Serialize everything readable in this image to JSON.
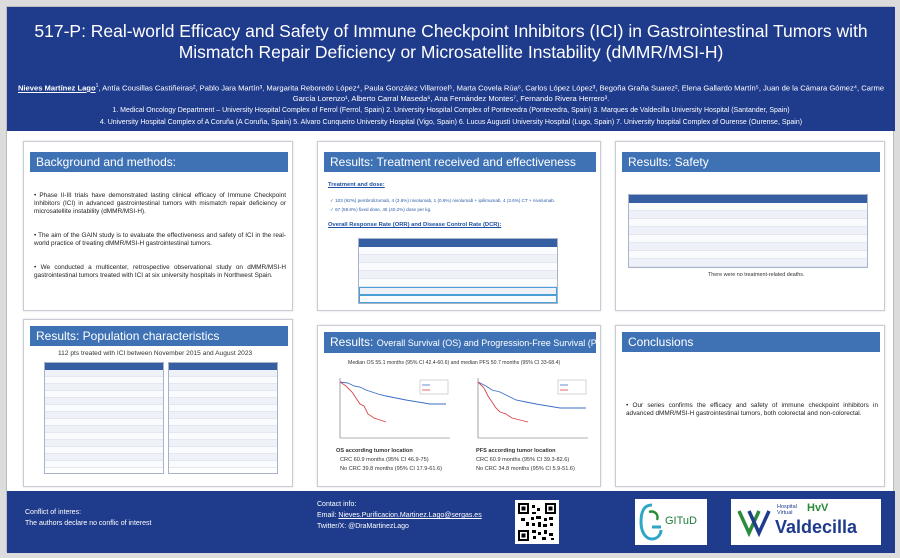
{
  "header": {
    "title_line1": "517-P: Real-world Efficacy and Safety of Immune Checkpoint Inhibitors (ICI) in Gastrointestinal Tumors with",
    "title_line2": "Mismatch Repair Deficiency or Microsatellite Instability (dMMR/MSI-H)",
    "presenter": "Nieves Martínez Lago",
    "presenter_sup": "1",
    "authors_rest": ", Antía Cousillas Castiñeiras², Pablo Jara Martín³, Margarita Reboredo López⁴, Paula González Villarroel⁵, Marta Covela Rúa⁶, Carlos López López³, Begoña Graña Suarez², Elena Gallardo Martín⁵, Juan de la Cámara Gómez⁴, Carme García Lorenzo¹, Alberto Carral Maseda⁶, Ana Fernández Montes⁷, Fernando Rivera Herrero³.",
    "affil_line1": "1. Medical Oncology Department – University Hospital Complex of Ferrol (Ferrol, Spain) 2. University Hospital Complex of Pontevedra (Pontevedra, Spain) 3. Marques de Valdecilla University Hospital (Santander, Spain)",
    "affil_line2": "4. University Hospital Complex of A Coruña (A Coruña, Spain) 5. Alvaro Cunqueiro University Hospital (Vigo, Spain) 6. Lucus Augusti University Hospital (Lugo, Spain) 7. University hospital Complex of  Ourense (Ourense, Spain)"
  },
  "background": {
    "title": "Background and methods:",
    "b1": "Phase II-III trials have demonstrated lasting clinical efficacy of Immune Checkpoint Inhibitors (ICI) in advanced gastrointestinal tumors with mismatch repair deficiency or microsatellite instability (dMMR/MSI-H).",
    "b2": "The aim of the GAIN study is to evaluate the effectiveness and safety of ICI in the real-world practice of treating dMMR/MSI-H gastrointestinal tumors.",
    "b3": "We conducted a multicenter, retrospective observational study on dMMR/MSI-H gastrointestinal tumors treated with ICI at six university hospitals in Northwest Spain."
  },
  "population": {
    "title": "Results: Population characteristics",
    "subtitle": "112 pts treated with ICI between November 2015 and August 2023"
  },
  "treatment": {
    "title": "Results: Treatment received and effectiveness",
    "dose_heading": "Treatment and dose:",
    "dose_line1": "✓ 103 (92%) pembrolizumab, 4 (3.6%) nivolumab, 1 (0.9%) nivolumab + ipilimumab, 4 (3.6%) CT + nivolumab.",
    "dose_line2": "✓ 67 (59.8%) fixed dose, 45 (40.2%) dose per kg.",
    "orr_heading": "Overall Response Rate (ORR) and Disease Control Rate (DCR):"
  },
  "safety": {
    "title": "Results: Safety",
    "note": "There were no treatment-related deaths."
  },
  "survival": {
    "title": "Results:",
    "title_small": "Overall Survival (OS) and Progression-Free Survival (PFS)",
    "median_line": "Median OS 55.1 months (95% CI 42.4-60.6) and median PFS 50.7 months (95% CI 33-68.4)",
    "os_label": "OS according tumor location",
    "os_crc": "CRC 60.9 months (95% CI 46.9-75)",
    "os_nocrc": "No CRC 39.8 months (95% CI 17.9-61.6)",
    "pfs_label": "PFS according tumor location",
    "pfs_crc": "CRC 60.9 months (95% CI 39.3-82.6)",
    "pfs_nocrc": "No CRC 34.8 months (95% CI 5.9-51.6)"
  },
  "conclusions": {
    "title": "Conclusions",
    "b1": "Our series confirms the efficacy and safety of immune checkpoint inhibitors in advanced dMMR/MSI-H gastrointestinal tumors, both colorectal and non-colorectal."
  },
  "footer": {
    "conflict_title": "Conflict of interes:",
    "conflict_text": "The authors declare no conflic of interest",
    "contact_title": "Contact info:",
    "email_label": "Email: ",
    "email": "Nieves.Purificacion.Martinez.Lago@sergas.es",
    "twitter": "Twitter/X: @DraMartinezLago",
    "logo1": "GITuD",
    "logo2_small1": "Hospital",
    "logo2_small2": "Virtual",
    "logo2_hvv": "HvV",
    "logo2_name": "Valdecilla"
  },
  "colors": {
    "header_bg": "#1f3b8c",
    "panel_title_bg": "#3f72b5"
  }
}
